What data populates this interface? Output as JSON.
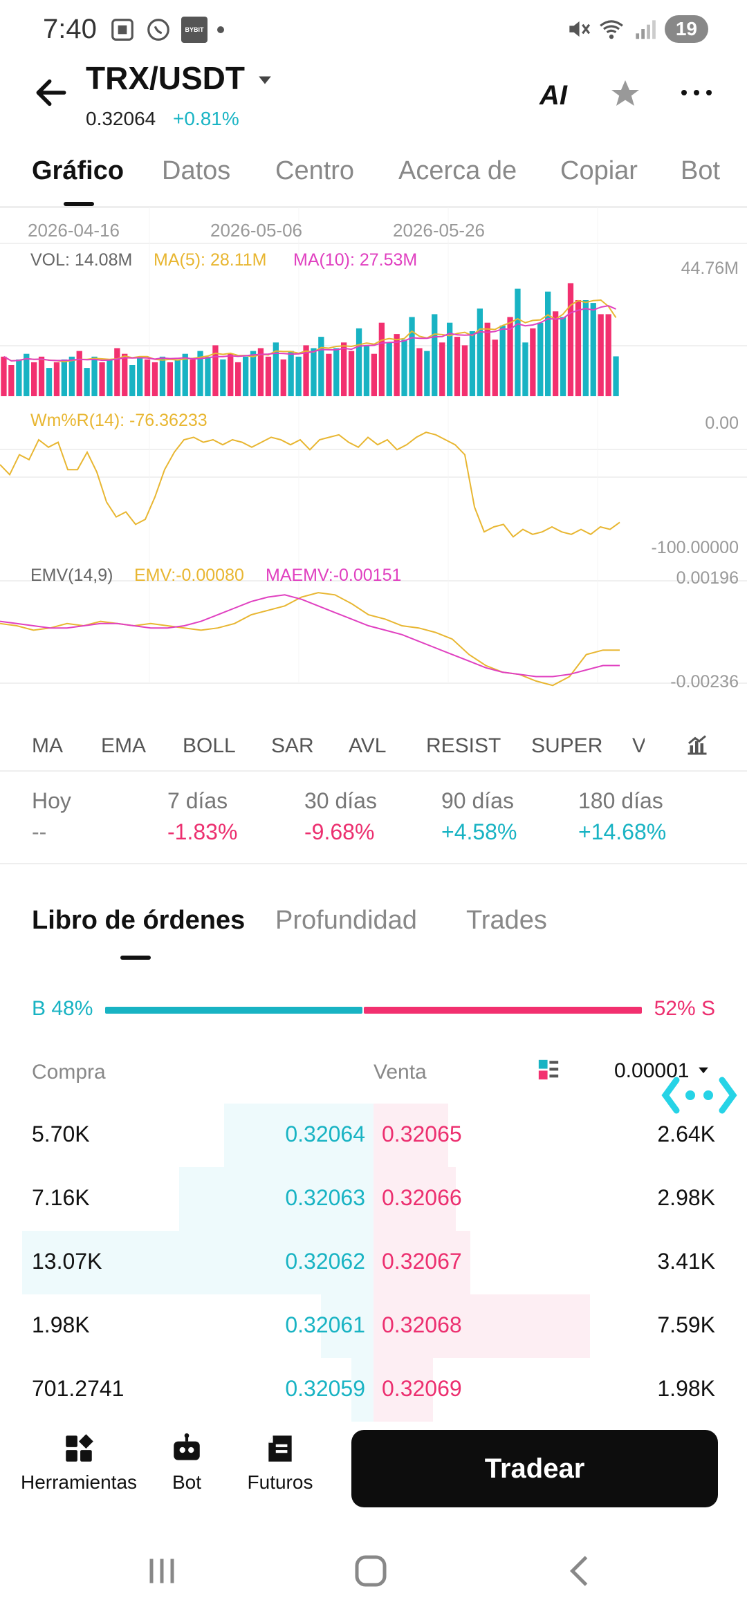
{
  "status_bar": {
    "time": "7:40",
    "left_icons": [
      "screenshot-icon",
      "whatsapp-icon",
      "bybit-icon",
      "dot-icon"
    ],
    "bybit_text": "BYBIT",
    "right_icons": [
      "mute-icon",
      "wifi-icon",
      "signal-icon"
    ],
    "battery": "19"
  },
  "header": {
    "pair": "TRX/USDT",
    "price": "0.32064",
    "change": "+0.81%",
    "ai_label": "AI"
  },
  "tabs": [
    {
      "label": "Gráfico",
      "active": true
    },
    {
      "label": "Datos",
      "active": false
    },
    {
      "label": "Centro",
      "active": false
    },
    {
      "label": "Acerca de",
      "active": false
    },
    {
      "label": "Copiar",
      "active": false
    },
    {
      "label": "Bot",
      "active": false
    }
  ],
  "chart": {
    "dates": [
      "2026-04-16",
      "2026-05-06",
      "2026-05-26"
    ],
    "volume": {
      "label": "VOL: 14.08M",
      "ma5": "MA(5): 28.11M",
      "ma10": "MA(10): 27.53M",
      "axis_max": "44.76M"
    },
    "wmr": {
      "label": "Wm%R(14): -76.36233",
      "axis_top": "0.00",
      "axis_bottom": "-100.00000"
    },
    "emv": {
      "label": "EMV(14,9)",
      "emv": "EMV:-0.00080",
      "maemv": "MAEMV:-0.00151",
      "axis_top": "0.00196",
      "axis_bottom": "-0.00236"
    },
    "colors": {
      "up": "#18b3c3",
      "down": "#f2306f",
      "ma5": "#e8b631",
      "ma10": "#e040c0"
    }
  },
  "chart_data": [
    {
      "type": "bar",
      "title": "VOL: 14.08M",
      "series": [
        {
          "name": "VOL",
          "values": [
            14,
            11,
            13,
            15,
            12,
            14,
            10,
            12,
            13,
            14,
            16,
            10,
            14,
            12,
            13,
            17,
            15,
            11,
            14,
            13,
            12,
            14,
            12,
            13,
            15,
            13,
            16,
            14,
            18,
            13,
            15,
            12,
            14,
            16,
            17,
            14,
            19,
            13,
            16,
            14,
            18,
            17,
            21,
            15,
            17,
            19,
            16,
            24,
            18,
            15,
            26,
            19,
            22,
            20,
            28,
            17,
            16,
            29,
            19,
            26,
            21,
            18,
            23,
            31,
            26,
            20,
            25,
            28,
            38,
            19,
            24,
            26,
            37,
            30,
            28,
            40,
            34,
            34,
            33,
            29,
            29,
            14.08
          ],
          "colors_index": "up/down"
        },
        {
          "name": "MA(5)",
          "last": 28.11
        },
        {
          "name": "MA(10)",
          "last": 27.53
        }
      ],
      "ylim": [
        0,
        44.76
      ]
    },
    {
      "type": "line",
      "title": "Wm%R(14): -76.36233",
      "series": [
        {
          "name": "Wm%R(14)",
          "values": [
            -30,
            -38,
            -22,
            -26,
            -10,
            -16,
            -12,
            -34,
            -34,
            -20,
            -36,
            -60,
            -72,
            -68,
            -78,
            -74,
            -56,
            -34,
            -20,
            -10,
            -8,
            -12,
            -10,
            -14,
            -10,
            -12,
            -16,
            -12,
            -8,
            -10,
            -14,
            -10,
            -18,
            -10,
            -8,
            -6,
            -12,
            -16,
            -8,
            -14,
            -10,
            -18,
            -14,
            -8,
            -4,
            -6,
            -10,
            -14,
            -22,
            -64,
            -84,
            -80,
            -78,
            -88,
            -82,
            -86,
            -84,
            -80,
            -84,
            -86,
            -82,
            -86,
            -80,
            -82,
            -76.36
          ]
        }
      ],
      "ylim": [
        -100,
        0
      ]
    },
    {
      "type": "line",
      "title": "EMV(14,9)",
      "series": [
        {
          "name": "EMV",
          "values": [
            0.0004,
            0.0003,
            0.0001,
            0.0002,
            0.0004,
            0.0003,
            0.0005,
            0.0004,
            0.0003,
            0.0004,
            0.0003,
            0.0002,
            0.0001,
            0.0002,
            0.0004,
            0.0008,
            0.001,
            0.0012,
            0.0016,
            0.0018,
            0.0017,
            0.0013,
            0.0008,
            0.0006,
            0.0003,
            0.0002,
            0.0,
            -0.0003,
            -0.001,
            -0.0015,
            -0.0018,
            -0.0019,
            -0.0022,
            -0.0024,
            -0.002,
            -0.001,
            -0.0008,
            -0.0008
          ]
        },
        {
          "name": "MAEMV",
          "values": [
            0.0005,
            0.0004,
            0.0003,
            0.0002,
            0.0002,
            0.0003,
            0.0004,
            0.0004,
            0.0003,
            0.0002,
            0.0002,
            0.0003,
            0.0005,
            0.0008,
            0.0011,
            0.0014,
            0.0016,
            0.0017,
            0.0015,
            0.0012,
            0.0009,
            0.0006,
            0.0003,
            0.0001,
            -0.0001,
            -0.0004,
            -0.0007,
            -0.001,
            -0.0013,
            -0.0016,
            -0.0018,
            -0.0019,
            -0.002,
            -0.002,
            -0.0019,
            -0.0017,
            -0.0015,
            -0.0015
          ]
        }
      ],
      "ylim": [
        -0.00236,
        0.00196
      ]
    }
  ],
  "indicators": [
    "MA",
    "EMA",
    "BOLL",
    "SAR",
    "AVL",
    "RESIST",
    "SUPER",
    "V"
  ],
  "performance": [
    {
      "label": "Hoy",
      "value": "--",
      "tone": "neutral"
    },
    {
      "label": "7 días",
      "value": "-1.83%",
      "tone": "neg"
    },
    {
      "label": "30 días",
      "value": "-9.68%",
      "tone": "neg"
    },
    {
      "label": "90 días",
      "value": "+4.58%",
      "tone": "pos"
    },
    {
      "label": "180 días",
      "value": "+14.68%",
      "tone": "pos"
    }
  ],
  "orderbook": {
    "tabs": [
      {
        "label": "Libro de órdenes",
        "active": true
      },
      {
        "label": "Profundidad",
        "active": false
      },
      {
        "label": "Trades",
        "active": false
      }
    ],
    "buy_ratio_label": "B 48%",
    "sell_ratio_label": "52% S",
    "buy_ratio": 0.48,
    "col_buy": "Compra",
    "col_sell": "Venta",
    "precision": "0.00001",
    "rows": [
      {
        "bid_qty": "5.70K",
        "bid_price": "0.32064",
        "ask_price": "0.32065",
        "ask_qty": "2.64K",
        "bid_depth": 0.2,
        "ask_depth": 0.1
      },
      {
        "bid_qty": "7.16K",
        "bid_price": "0.32063",
        "ask_price": "0.32066",
        "ask_qty": "2.98K",
        "bid_depth": 0.26,
        "ask_depth": 0.11
      },
      {
        "bid_qty": "13.07K",
        "bid_price": "0.32062",
        "ask_price": "0.32067",
        "ask_qty": "3.41K",
        "bid_depth": 0.47,
        "ask_depth": 0.13
      },
      {
        "bid_qty": "1.98K",
        "bid_price": "0.32061",
        "ask_price": "0.32068",
        "ask_qty": "7.59K",
        "bid_depth": 0.07,
        "ask_depth": 0.29
      },
      {
        "bid_qty": "701.2741",
        "bid_price": "0.32059",
        "ask_price": "0.32069",
        "ask_qty": "1.98K",
        "bid_depth": 0.03,
        "ask_depth": 0.08
      }
    ]
  },
  "bottom_bar": {
    "tools_label": "Herramientas",
    "bot_label": "Bot",
    "futures_label": "Futuros",
    "trade_label": "Tradear"
  }
}
